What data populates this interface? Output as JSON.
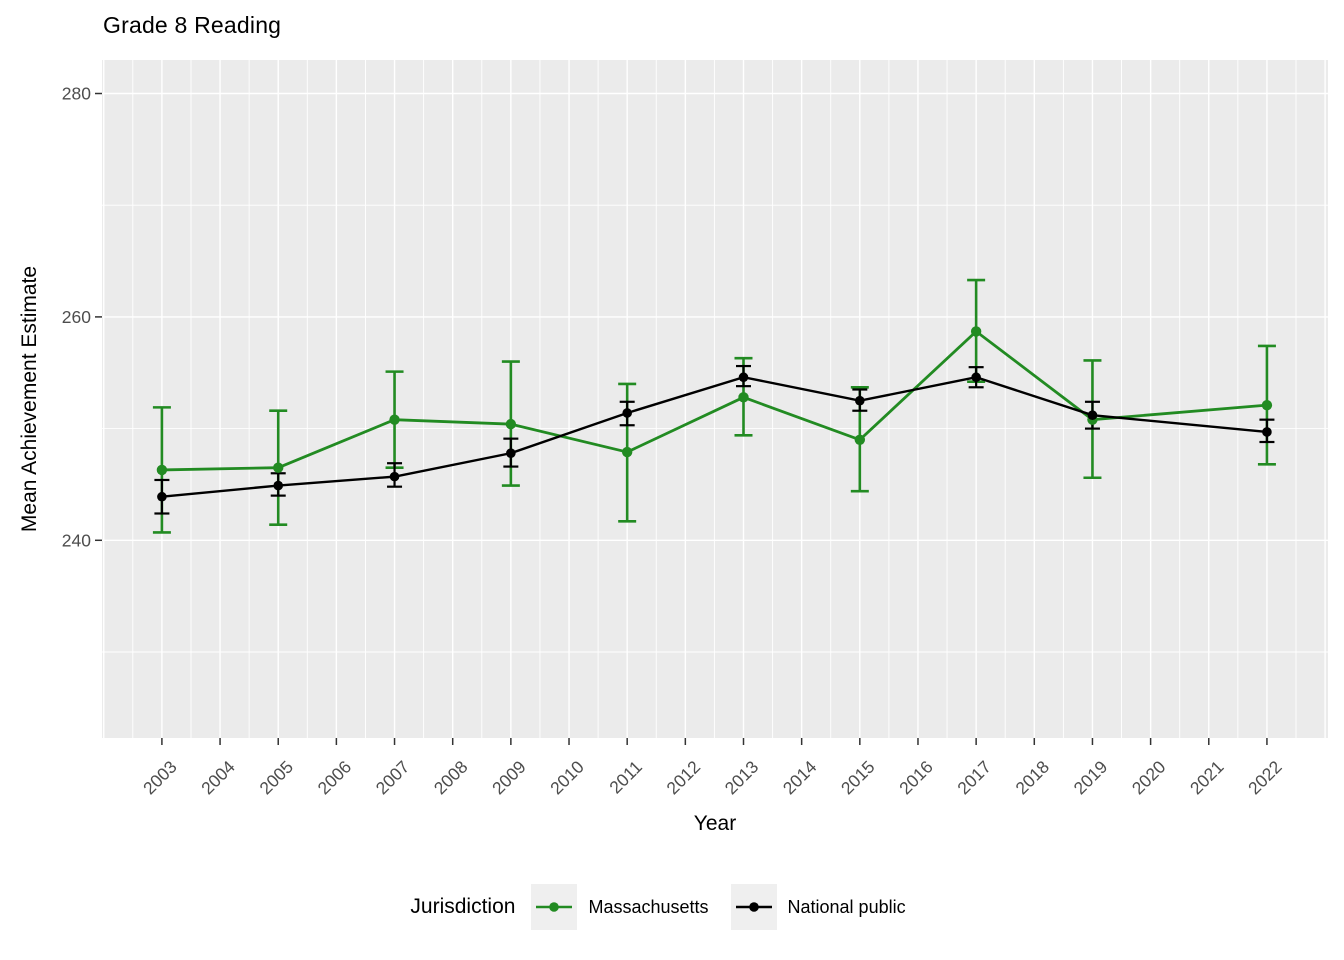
{
  "chart_data": {
    "type": "line",
    "title": "Grade 8 Reading",
    "xlabel": "Year",
    "ylabel": "Mean Achievement Estimate",
    "legend_title": "Jurisdiction",
    "legend_position": "bottom",
    "panel_bg": "#EBEBEB",
    "grid_color": "#FFFFFF",
    "tick_label_color": "#4D4D4D",
    "axis_tick_color": "#333333",
    "xlim": [
      2001.97,
      2023.05
    ],
    "ylim": [
      222.3,
      283.0
    ],
    "x_breaks": [
      2003,
      2004,
      2005,
      2006,
      2007,
      2008,
      2009,
      2010,
      2011,
      2012,
      2013,
      2014,
      2015,
      2016,
      2017,
      2018,
      2019,
      2020,
      2021,
      2022
    ],
    "x_major_gridlines": [
      2002,
      2003,
      2004,
      2005,
      2006,
      2007,
      2008,
      2009,
      2010,
      2011,
      2012,
      2013,
      2014,
      2015,
      2016,
      2017,
      2018,
      2019,
      2020,
      2021,
      2022,
      2023
    ],
    "x_minor_gridlines": [
      2002.5,
      2003.5,
      2004.5,
      2005.5,
      2006.5,
      2007.5,
      2008.5,
      2009.5,
      2010.5,
      2011.5,
      2012.5,
      2013.5,
      2014.5,
      2015.5,
      2016.5,
      2017.5,
      2018.5,
      2019.5,
      2020.5,
      2021.5,
      2022.5
    ],
    "y_breaks": [
      240,
      260,
      280
    ],
    "y_minor_gridlines": [
      230,
      250,
      270
    ],
    "x": [
      2003,
      2005,
      2007,
      2009,
      2011,
      2013,
      2015,
      2017,
      2019,
      2022
    ],
    "series": [
      {
        "name": "Massachusetts",
        "color": "#228B22",
        "values": [
          246.3,
          246.5,
          250.8,
          250.4,
          247.9,
          252.8,
          249.0,
          258.7,
          250.8,
          252.1
        ],
        "err_lo": [
          240.7,
          241.4,
          246.5,
          244.9,
          241.7,
          249.4,
          244.4,
          254.2,
          245.6,
          246.8
        ],
        "err_hi": [
          251.9,
          251.6,
          255.1,
          256.0,
          254.0,
          256.3,
          253.7,
          263.3,
          256.1,
          257.4
        ]
      },
      {
        "name": "National public",
        "color": "#000000",
        "values": [
          243.9,
          244.9,
          245.7,
          247.8,
          251.4,
          254.6,
          252.5,
          254.6,
          251.2,
          249.7
        ],
        "err_lo": [
          242.4,
          244.0,
          244.8,
          246.6,
          250.3,
          253.8,
          251.6,
          253.7,
          250.0,
          248.8
        ],
        "err_hi": [
          245.4,
          246.0,
          246.9,
          249.1,
          252.4,
          255.6,
          253.5,
          255.5,
          252.4,
          250.8
        ]
      }
    ]
  }
}
